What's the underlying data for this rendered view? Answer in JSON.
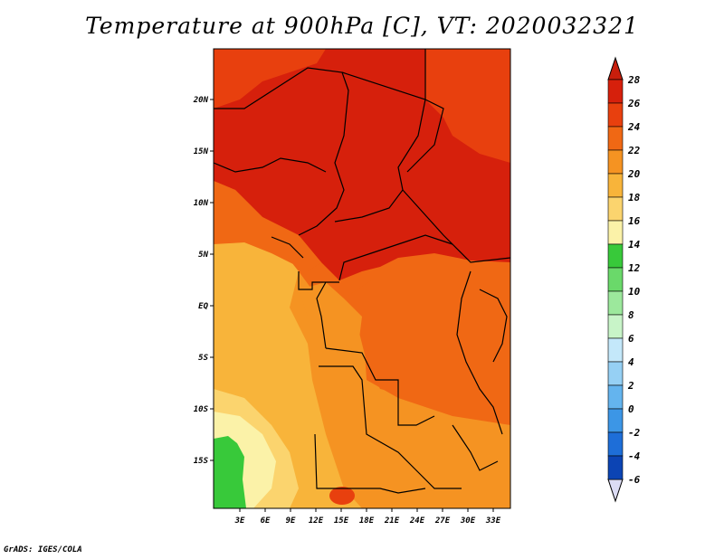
{
  "title": "Temperature at 900hPa [C], VT: 2020032321",
  "credit": "GrADS: IGES/COLA",
  "map": {
    "lat_labels": [
      "20N",
      "15N",
      "10N",
      "5N",
      "EQ",
      "5S",
      "10S",
      "15S"
    ],
    "lon_labels": [
      "3E",
      "6E",
      "9E",
      "12E",
      "15E",
      "18E",
      "21E",
      "24E",
      "27E",
      "30E",
      "33E"
    ]
  },
  "colorbar": {
    "levels": [
      "28",
      "26",
      "24",
      "22",
      "20",
      "18",
      "16",
      "14",
      "12",
      "10",
      "8",
      "6",
      "4",
      "2",
      "0",
      "-2",
      "-4",
      "-6"
    ],
    "colors": [
      "#d6200c",
      "#e8400e",
      "#f06814",
      "#f59322",
      "#f8b43a",
      "#fbd46e",
      "#fbf2a8",
      "#38c93a",
      "#6ad96a",
      "#9ce89c",
      "#c8f4c8",
      "#c4e8fa",
      "#96d0f4",
      "#64b4ee",
      "#3c96e6",
      "#1e6ed8",
      "#0c44b4",
      "#0a1878"
    ],
    "top_arrow_color": "#c81e0c",
    "bottom_arrow_color": "#dcdcf4"
  }
}
